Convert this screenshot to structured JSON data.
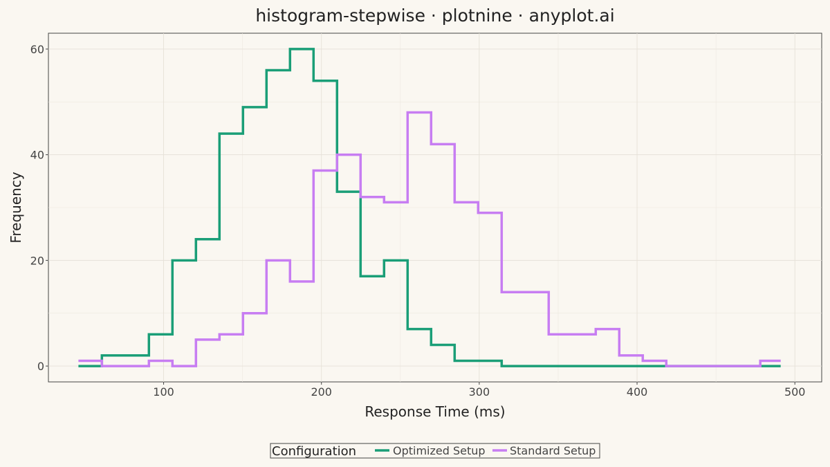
{
  "chart_data": {
    "type": "line",
    "subtype": "step-histogram",
    "title": "histogram-stepwise · plotnine · anyplot.ai",
    "xlabel": "Response Time (ms)",
    "ylabel": "Frequency",
    "xlim": [
      27,
      517
    ],
    "ylim": [
      -3,
      63
    ],
    "x_ticks": [
      100,
      200,
      300,
      400,
      500
    ],
    "y_ticks": [
      0,
      20,
      40,
      60
    ],
    "grid": true,
    "legend": {
      "title": "Configuration",
      "position": "bottom"
    },
    "bin_edges": [
      46.0,
      60.9,
      75.8,
      90.7,
      105.6,
      120.5,
      135.4,
      150.3,
      165.2,
      180.1,
      195.0,
      209.9,
      224.8,
      239.7,
      254.6,
      269.5,
      284.4,
      299.3,
      314.2,
      329.1,
      344.0,
      358.9,
      373.8,
      388.7,
      403.6,
      418.5,
      433.4,
      448.3,
      463.2,
      478.1,
      491.0
    ],
    "series": [
      {
        "name": "Optimized Setup",
        "color": "#1a9e77",
        "values": [
          0,
          2,
          2,
          6,
          20,
          24,
          44,
          49,
          56,
          60,
          54,
          33,
          17,
          20,
          7,
          4,
          1,
          1,
          0,
          0,
          0,
          0,
          0,
          0,
          0,
          0,
          0,
          0,
          0,
          0
        ]
      },
      {
        "name": "Standard Setup",
        "color": "#c77df2",
        "values": [
          1,
          0,
          0,
          1,
          0,
          5,
          6,
          10,
          20,
          16,
          37,
          40,
          32,
          31,
          48,
          42,
          31,
          29,
          14,
          14,
          6,
          6,
          7,
          2,
          1,
          0,
          0,
          0,
          0,
          1
        ]
      }
    ]
  }
}
